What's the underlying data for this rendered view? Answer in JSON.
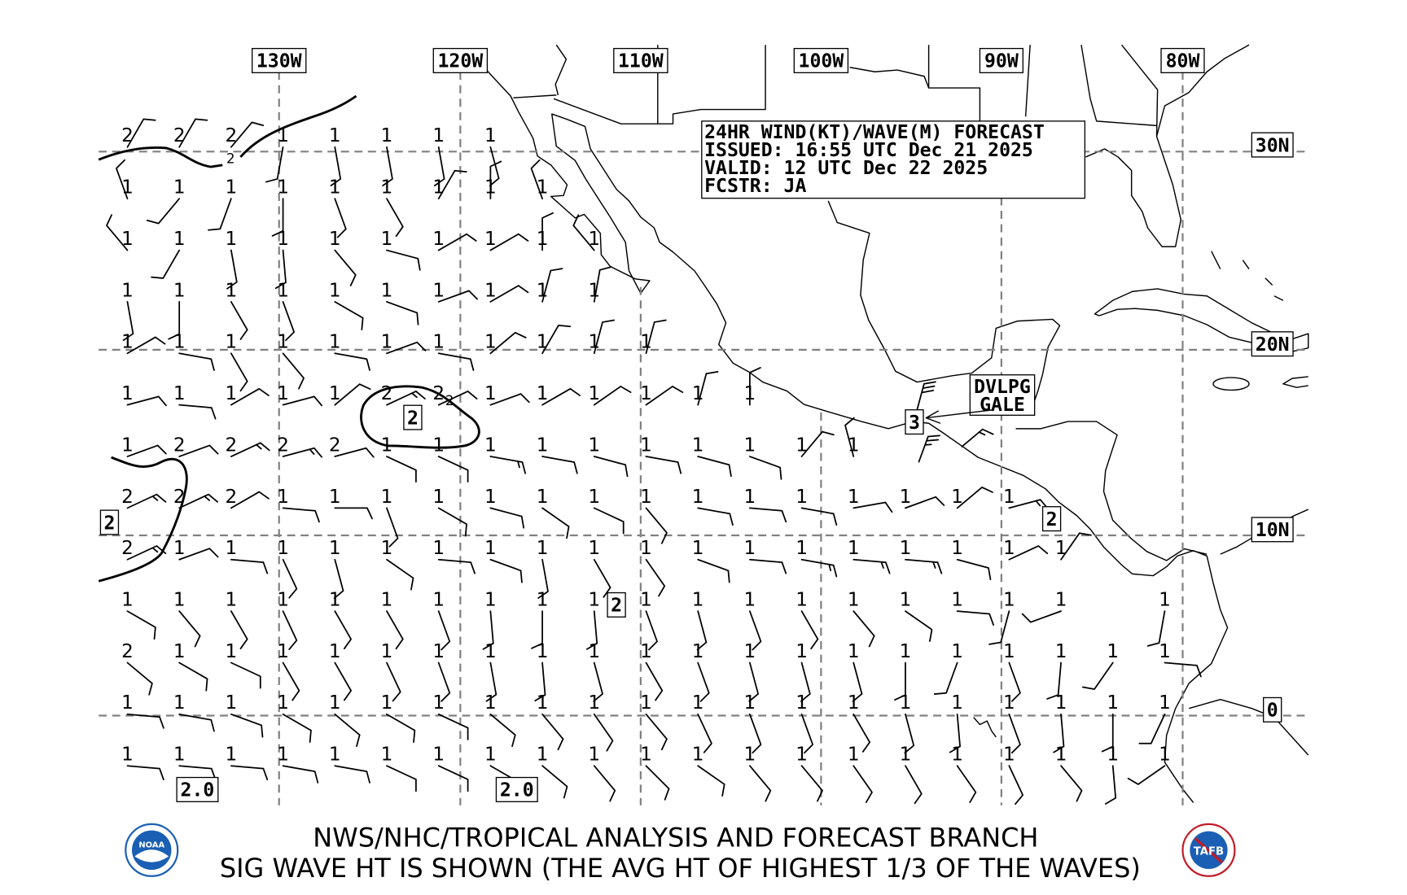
{
  "header": {
    "line1": "24HR WIND(KT)/WAVE(M) FORECAST",
    "line2": "ISSUED: 16:55 UTC Dec 21 2025",
    "line3": "VALID: 12 UTC Dec 22 2025",
    "line4": "FCSTR: JA"
  },
  "longitude_labels": [
    "130W",
    "120W",
    "110W",
    "100W",
    "90W",
    "80W"
  ],
  "latitude_labels": [
    "30N",
    "20N",
    "10N"
  ],
  "boxed_wave_labels": [
    "2",
    "2",
    "2",
    "2",
    "3",
    "0",
    "2.0",
    "2.0"
  ],
  "contour_small_label": "2",
  "contour_small_label_2": "2",
  "gale_label": {
    "line1": "DVLPG",
    "line2": "GALE"
  },
  "special_winds": [
    {
      "name": "tehuantepec-gale",
      "wind_from_deg": 15,
      "kt": 30
    },
    {
      "name": "tehuantepec-outflow",
      "wind_from_deg": 20,
      "kt": 25
    },
    {
      "name": "guatemala-coast",
      "wind_from_deg": 50,
      "kt": 15
    }
  ],
  "stations": [
    {
      "waves": [
        2,
        2,
        2,
        1,
        1,
        1,
        1,
        1
      ],
      "wind_from_deg": [
        30,
        30,
        40,
        190,
        170,
        170,
        170,
        165
      ],
      "wind_kt": [
        10,
        10,
        10,
        10,
        10,
        10,
        10,
        10
      ]
    },
    {
      "waves": [
        1,
        1,
        1,
        1,
        1,
        1,
        1,
        1,
        1
      ],
      "wind_from_deg": [
        340,
        220,
        200,
        180,
        160,
        150,
        30,
        0,
        340
      ],
      "wind_kt": [
        10,
        10,
        10,
        10,
        10,
        10,
        10,
        10,
        10
      ]
    },
    {
      "waves": [
        1,
        1,
        1,
        1,
        1,
        1,
        1,
        1,
        1,
        1
      ],
      "wind_from_deg": [
        320,
        210,
        170,
        175,
        140,
        105,
        60,
        60,
        0,
        320
      ],
      "wind_kt": [
        10,
        10,
        10,
        10,
        10,
        10,
        10,
        10,
        10,
        10
      ]
    },
    {
      "waves": [
        1,
        1,
        1,
        1,
        1,
        1,
        1,
        1,
        1,
        1
      ],
      "wind_from_deg": [
        170,
        180,
        150,
        160,
        120,
        110,
        70,
        60,
        15,
        10
      ],
      "wind_kt": [
        10,
        10,
        10,
        10,
        10,
        10,
        10,
        10,
        10,
        10
      ]
    },
    {
      "waves": [
        1,
        1,
        1,
        1,
        1,
        1,
        1,
        1,
        1,
        1,
        1
      ],
      "wind_from_deg": [
        60,
        100,
        150,
        140,
        100,
        70,
        100,
        50,
        30,
        15,
        15
      ],
      "wind_kt": [
        10,
        10,
        10,
        10,
        10,
        10,
        10,
        10,
        10,
        10,
        10
      ]
    },
    {
      "waves": [
        1,
        1,
        1,
        1,
        1,
        2,
        2,
        1,
        1,
        1,
        1,
        1,
        1
      ],
      "wind_from_deg": [
        75,
        95,
        60,
        75,
        50,
        65,
        65,
        70,
        60,
        55,
        55,
        15,
        0
      ],
      "wind_kt": [
        10,
        10,
        10,
        10,
        10,
        15,
        10,
        10,
        10,
        10,
        10,
        10,
        10
      ]
    },
    {
      "waves": [
        1,
        2,
        2,
        2,
        2,
        1,
        1,
        1,
        1,
        1,
        1,
        1,
        1,
        1,
        1
      ],
      "wind_from_deg": [
        70,
        70,
        65,
        75,
        75,
        115,
        115,
        100,
        100,
        105,
        100,
        105,
        110,
        40,
        345
      ],
      "wind_kt": [
        10,
        10,
        15,
        15,
        10,
        10,
        10,
        15,
        10,
        10,
        10,
        10,
        10,
        10,
        10
      ]
    },
    {
      "waves": [
        2,
        2,
        2,
        1,
        1,
        1,
        1,
        1,
        1,
        1,
        1,
        1,
        1,
        1,
        1,
        1,
        1,
        1
      ],
      "wind_from_deg": [
        65,
        65,
        60,
        95,
        90,
        160,
        120,
        105,
        125,
        115,
        140,
        100,
        95,
        100,
        80,
        70,
        50,
        75
      ],
      "wind_kt": [
        15,
        15,
        10,
        10,
        10,
        10,
        10,
        10,
        10,
        10,
        10,
        10,
        10,
        10,
        10,
        10,
        10,
        15
      ]
    },
    {
      "waves": [
        2,
        1,
        1,
        1,
        1,
        1,
        1,
        1,
        1,
        1,
        1,
        1,
        1,
        1,
        1,
        1,
        1,
        1,
        1
      ],
      "wind_from_deg": [
        65,
        70,
        95,
        155,
        165,
        125,
        95,
        110,
        170,
        150,
        145,
        110,
        95,
        100,
        95,
        95,
        105,
        65,
        35
      ],
      "wind_kt": [
        15,
        10,
        10,
        10,
        10,
        10,
        10,
        10,
        10,
        10,
        10,
        10,
        10,
        15,
        15,
        15,
        10,
        10,
        10
      ]
    },
    {
      "waves": [
        1,
        1,
        1,
        1,
        1,
        1,
        1,
        1,
        1,
        1,
        1,
        1,
        1,
        1,
        1,
        1,
        1,
        1,
        1,
        null,
        1
      ],
      "wind_from_deg": [
        120,
        140,
        150,
        155,
        150,
        150,
        160,
        175,
        180,
        175,
        160,
        165,
        160,
        150,
        140,
        125,
        95,
        195,
        250,
        null,
        190
      ],
      "wind_kt": [
        10,
        10,
        10,
        10,
        10,
        10,
        10,
        10,
        10,
        10,
        10,
        10,
        10,
        10,
        10,
        10,
        10,
        10,
        10,
        null,
        10
      ]
    },
    {
      "waves": [
        2,
        1,
        1,
        1,
        1,
        1,
        1,
        1,
        1,
        1,
        1,
        1,
        1,
        1,
        1,
        1,
        1,
        1,
        1,
        1,
        1
      ],
      "wind_from_deg": [
        130,
        120,
        115,
        150,
        150,
        155,
        160,
        170,
        175,
        165,
        150,
        160,
        165,
        165,
        165,
        180,
        200,
        160,
        185,
        215,
        95
      ],
      "wind_kt": [
        10,
        10,
        10,
        10,
        10,
        10,
        10,
        10,
        10,
        10,
        10,
        10,
        10,
        10,
        10,
        10,
        10,
        10,
        10,
        10,
        10
      ]
    },
    {
      "waves": [
        1,
        1,
        1,
        1,
        1,
        1,
        1,
        1,
        1,
        1,
        1,
        1,
        1,
        1,
        1,
        1,
        1,
        1,
        1,
        1,
        1
      ],
      "wind_from_deg": [
        95,
        100,
        110,
        120,
        130,
        120,
        115,
        130,
        140,
        145,
        140,
        155,
        160,
        160,
        150,
        165,
        175,
        160,
        175,
        180,
        205
      ],
      "wind_kt": [
        10,
        10,
        10,
        10,
        10,
        10,
        10,
        10,
        10,
        10,
        10,
        10,
        10,
        10,
        10,
        10,
        10,
        10,
        10,
        10,
        10
      ]
    },
    {
      "waves": [
        1,
        1,
        1,
        1,
        1,
        1,
        1,
        1,
        1,
        1,
        1,
        1,
        1,
        1,
        1,
        1,
        1,
        1,
        1,
        1,
        1
      ],
      "wind_from_deg": [
        95,
        95,
        95,
        100,
        100,
        115,
        115,
        120,
        130,
        140,
        135,
        125,
        140,
        140,
        145,
        150,
        145,
        155,
        140,
        175,
        235
      ],
      "wind_kt": [
        10,
        10,
        10,
        10,
        10,
        10,
        10,
        10,
        10,
        10,
        10,
        10,
        10,
        10,
        10,
        10,
        10,
        10,
        10,
        10,
        10
      ]
    }
  ],
  "footer": {
    "line1": "NWS/NHC/TROPICAL ANALYSIS AND FORECAST BRANCH",
    "line2": "SIG WAVE HT IS SHOWN (THE AVG HT OF HIGHEST 1/3 OF THE WAVES)",
    "noaa_logo_text": "NOAA",
    "tafb_logo_text": "TAFB"
  },
  "colors": {
    "grid": "#808080",
    "ink": "#000000",
    "noaa_blue": "#1a5fb4",
    "tafb_red": "#c01c28"
  }
}
